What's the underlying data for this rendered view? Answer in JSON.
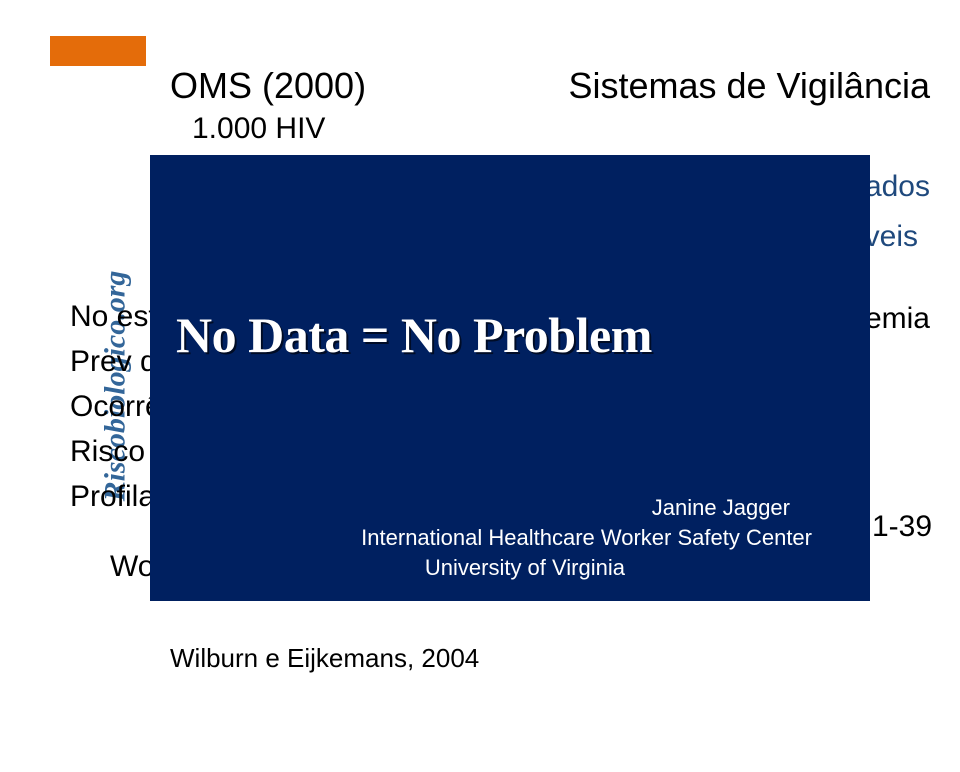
{
  "colors": {
    "accent": "#e46c0a",
    "blue": "#1f497d",
    "brand": "#336699",
    "overlay_bg": "#002060",
    "overlay_text": "#ffffff",
    "black": "#000000"
  },
  "brand": "Riscobiologico.org",
  "header": {
    "left": "OMS (2000)",
    "right": "Sistemas de Vigilância",
    "sub": "1.000 HIV"
  },
  "fragments": {
    "vados": "vados",
    "veis": "veis",
    "demia": "demia",
    "right_num": "1-39"
  },
  "left_frags": {
    "l1": "No esti",
    "l2": "Prev da",
    "l3": "Ocorrê",
    "l4": "Risco d",
    "l5": "Profilax",
    "wor": "Wor"
  },
  "cite2": "Wilburn e Eijkemans, 2004",
  "overlay": {
    "title": "No Data = No Problem",
    "attrib1": "Janine Jagger",
    "attrib2": "International Healthcare Worker Safety Center",
    "attrib3": "University of Virginia"
  }
}
